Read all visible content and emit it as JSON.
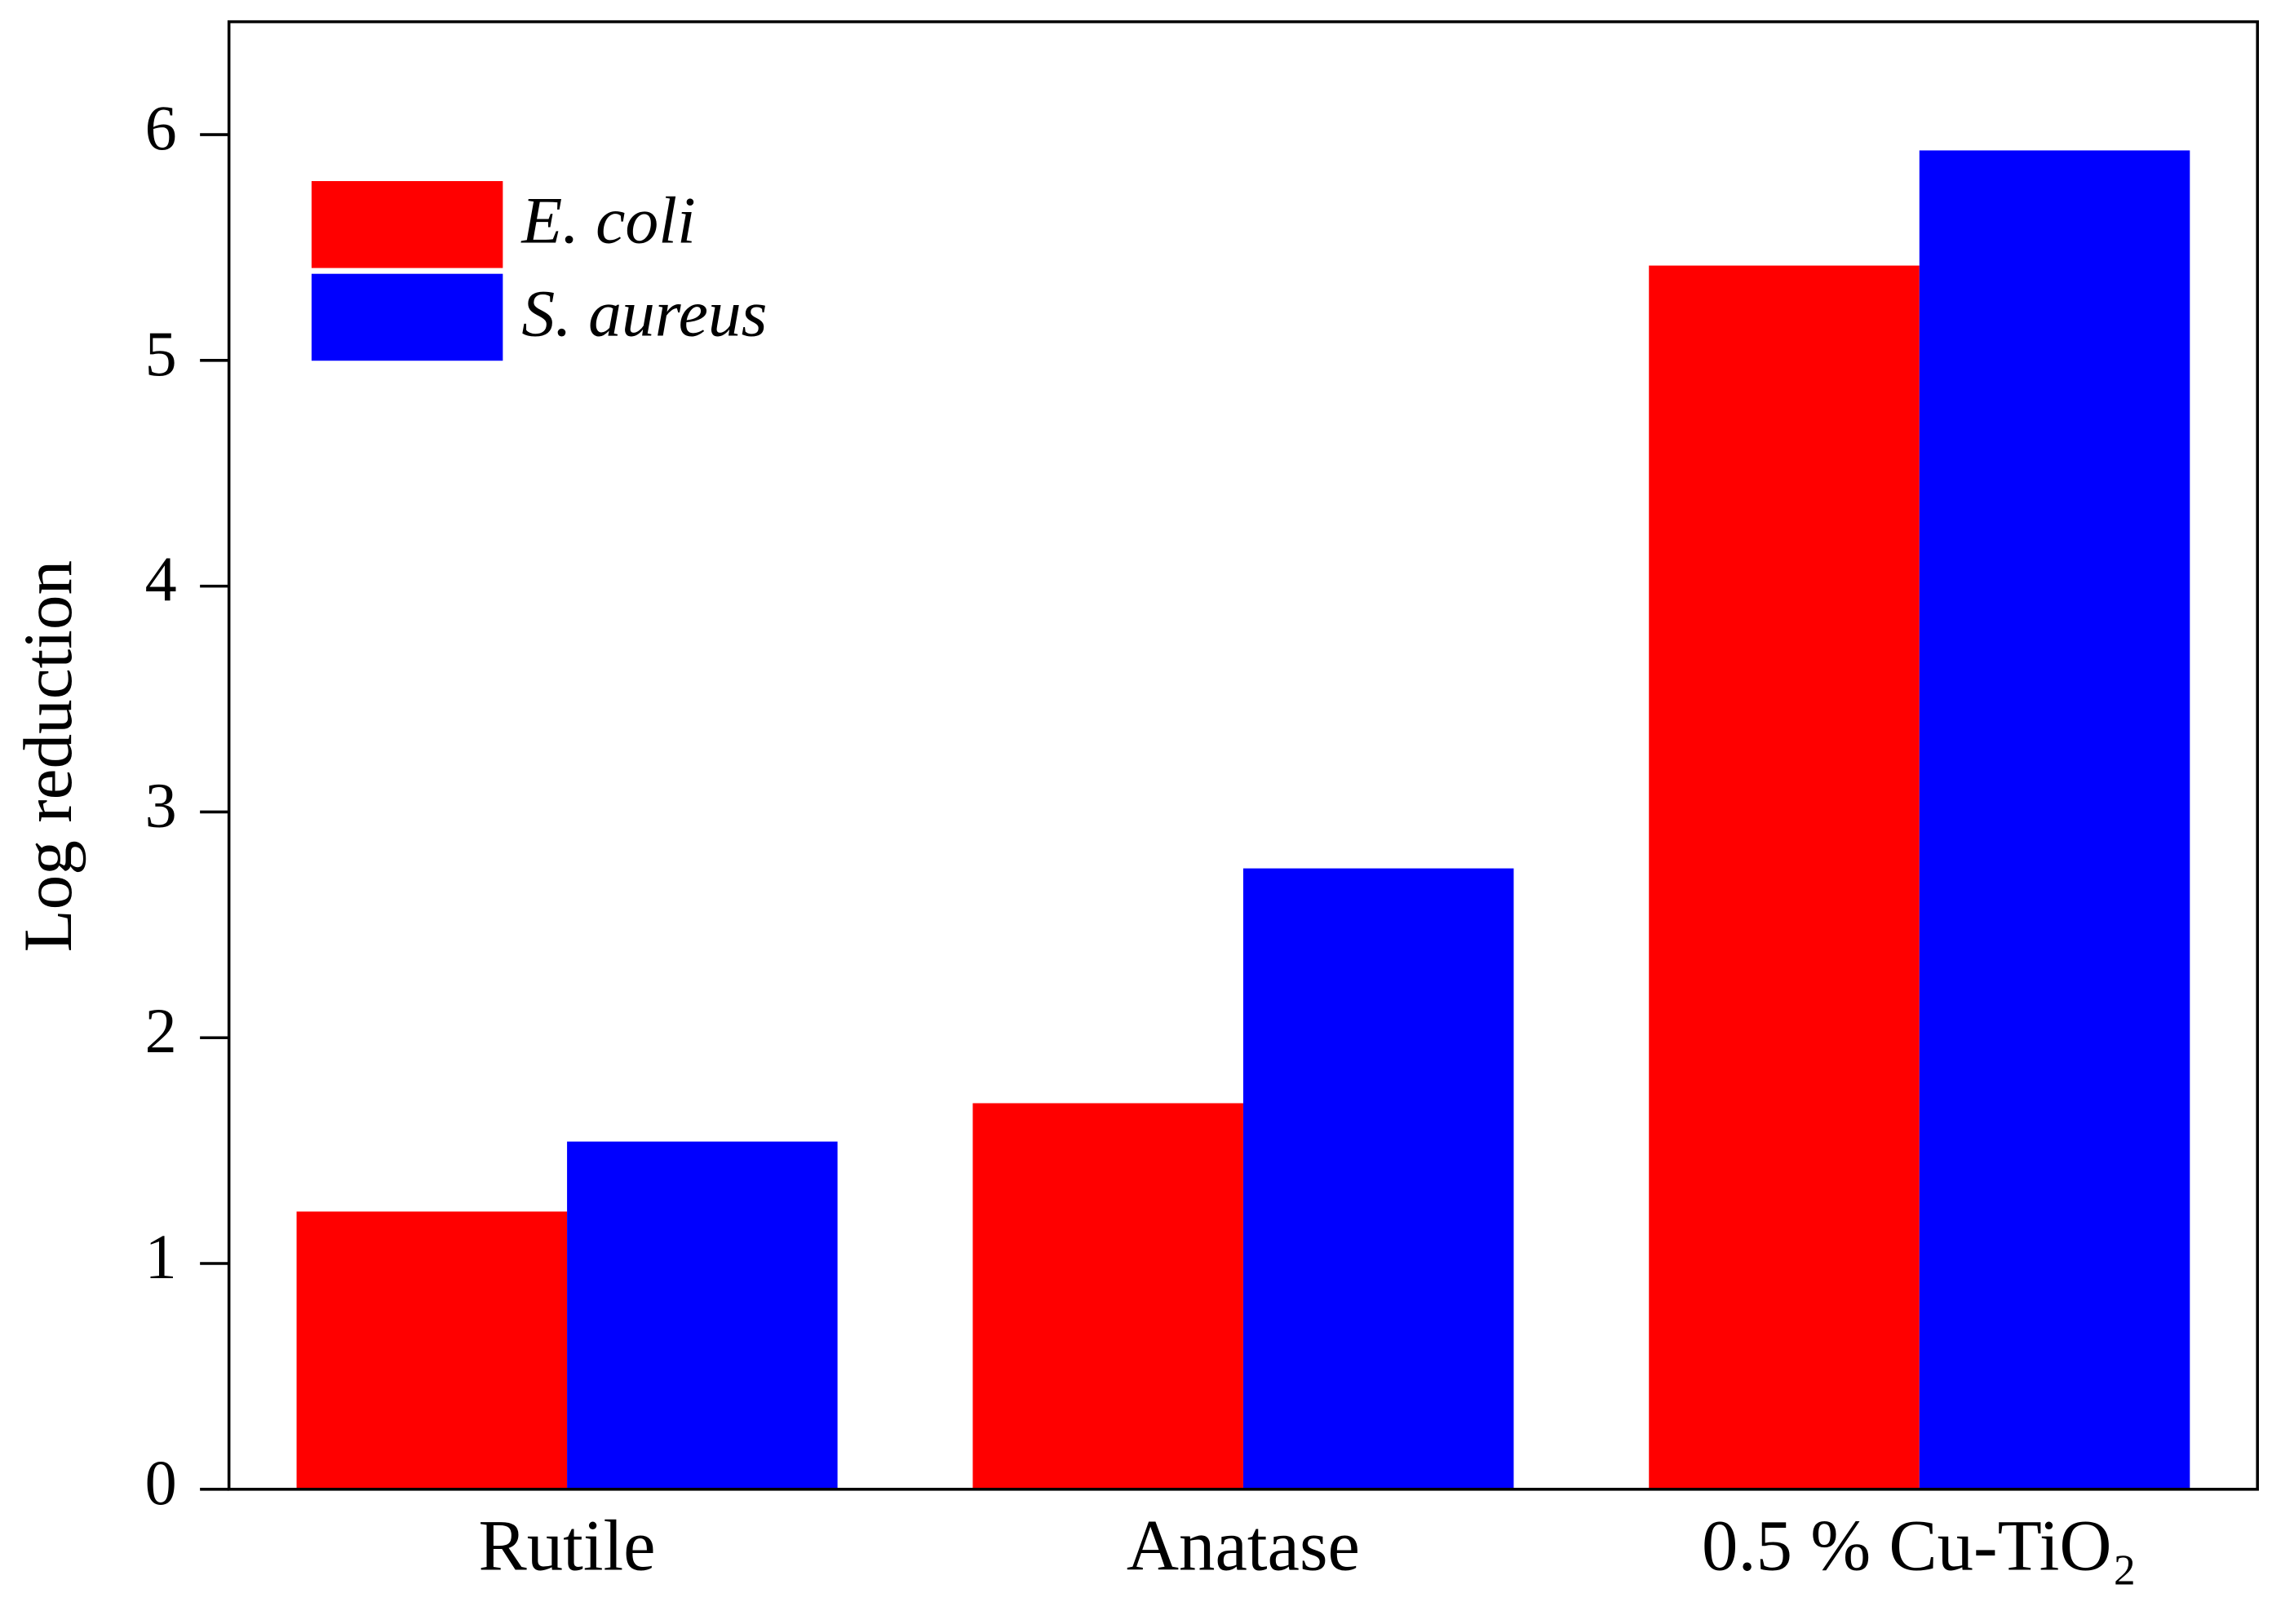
{
  "chart_data": {
    "type": "bar",
    "y_label": "Log reduction",
    "categories": [
      "Rutile",
      "Anatase",
      "0.5 % Cu-TiO₂"
    ],
    "series": [
      {
        "name": "E. coli",
        "color": "#ff0000",
        "values": [
          1.23,
          1.71,
          5.42
        ]
      },
      {
        "name": "S. aureus",
        "color": "#0000ff",
        "values": [
          1.54,
          2.75,
          5.93
        ]
      }
    ],
    "ylim": [
      0,
      6.5
    ],
    "yticks": [
      0,
      1,
      2,
      3,
      4,
      5,
      6
    ],
    "legend": "upper left",
    "grid": false
  }
}
